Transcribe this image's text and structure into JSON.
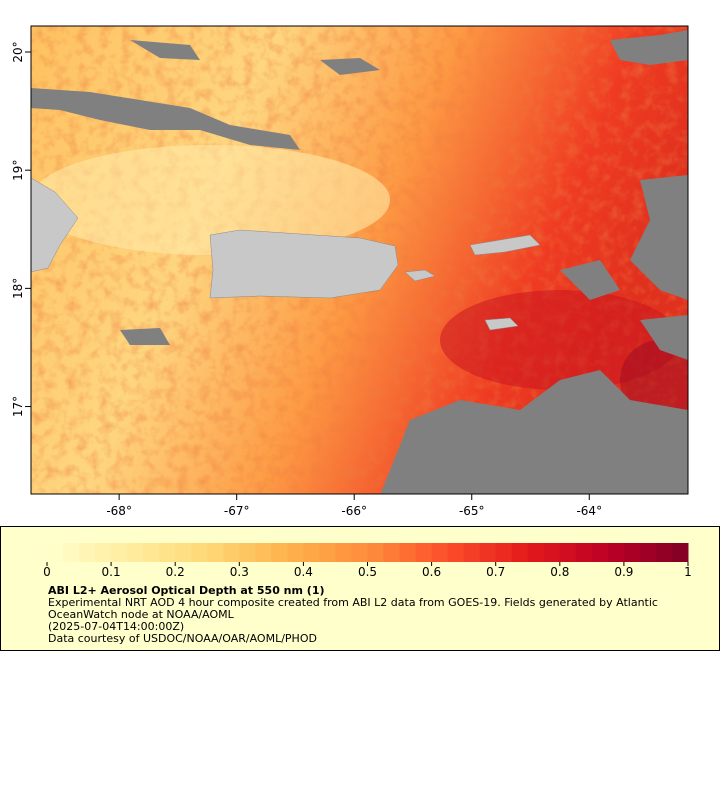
{
  "map": {
    "xlim": [
      -68.75,
      -63.16
    ],
    "ylim": [
      16.26,
      20.22
    ],
    "xticks": [
      {
        "value": -68,
        "label": "-68°"
      },
      {
        "value": -67,
        "label": "-67°"
      },
      {
        "value": -66,
        "label": "-66°"
      },
      {
        "value": -65,
        "label": "-65°"
      },
      {
        "value": -64,
        "label": "-64°"
      }
    ],
    "yticks": [
      {
        "value": 17,
        "label": "17°"
      },
      {
        "value": 18,
        "label": "18°"
      },
      {
        "value": 19,
        "label": "19°"
      },
      {
        "value": 20,
        "label": "20°"
      }
    ]
  },
  "colorbar": {
    "lim": [
      0,
      1
    ],
    "ticks": [
      0,
      0.1,
      0.2,
      0.3,
      0.4,
      0.5,
      0.6,
      0.7,
      0.8,
      0.9,
      1
    ],
    "colors": [
      "#ffffcc",
      "#ffeda0",
      "#fed976",
      "#feb24c",
      "#fd8d3c",
      "#fc4e2a",
      "#e31a1c",
      "#bd0026",
      "#800026"
    ]
  },
  "legend": {
    "title": "ABI L2+ Aerosol Optical Depth at 550 nm (1)",
    "lines": [
      "Experimental NRT AOD 4 hour composite created from ABI L2 data from GOES-19. Fields generated by Atlantic",
      "OceanWatch node at NOAA/AOML",
      "(2025-07-04T14:00:00Z)",
      "Data courtesy of USDOC/NOAA/OAR/AOML/PHOD"
    ]
  }
}
